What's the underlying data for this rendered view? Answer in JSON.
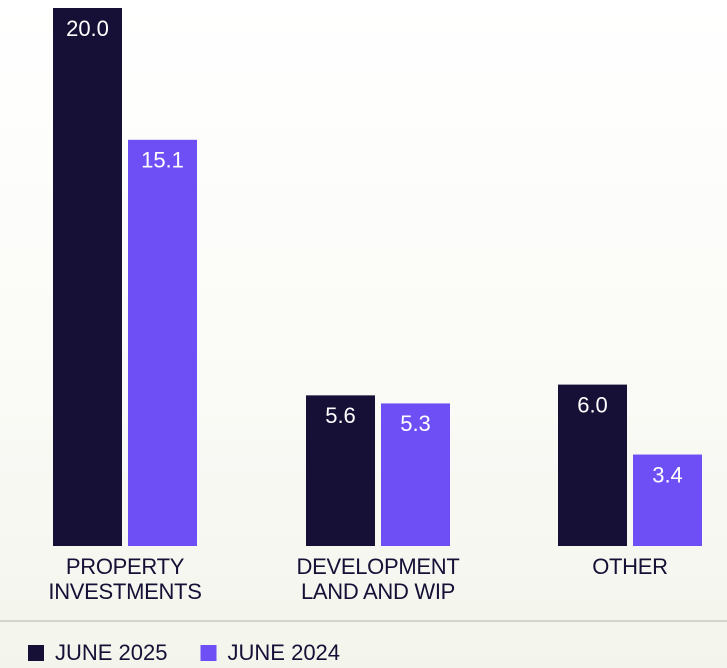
{
  "chart_data": {
    "type": "bar",
    "categories": [
      "PROPERTY\nINVESTMENTS",
      "DEVELOPMENT\nLAND AND WIP",
      "OTHER"
    ],
    "series": [
      {
        "name": "JUNE 2025",
        "color": "#160f36",
        "values": [
          20.0,
          5.6,
          6.0
        ],
        "value_labels": [
          "20.0",
          "5.6",
          "6.0"
        ]
      },
      {
        "name": "JUNE 2024",
        "color": "#6e4ff6",
        "values": [
          15.1,
          5.3,
          3.4
        ],
        "value_labels": [
          "15.1",
          "5.3",
          "3.4"
        ]
      }
    ],
    "legend": "bottom-left"
  }
}
